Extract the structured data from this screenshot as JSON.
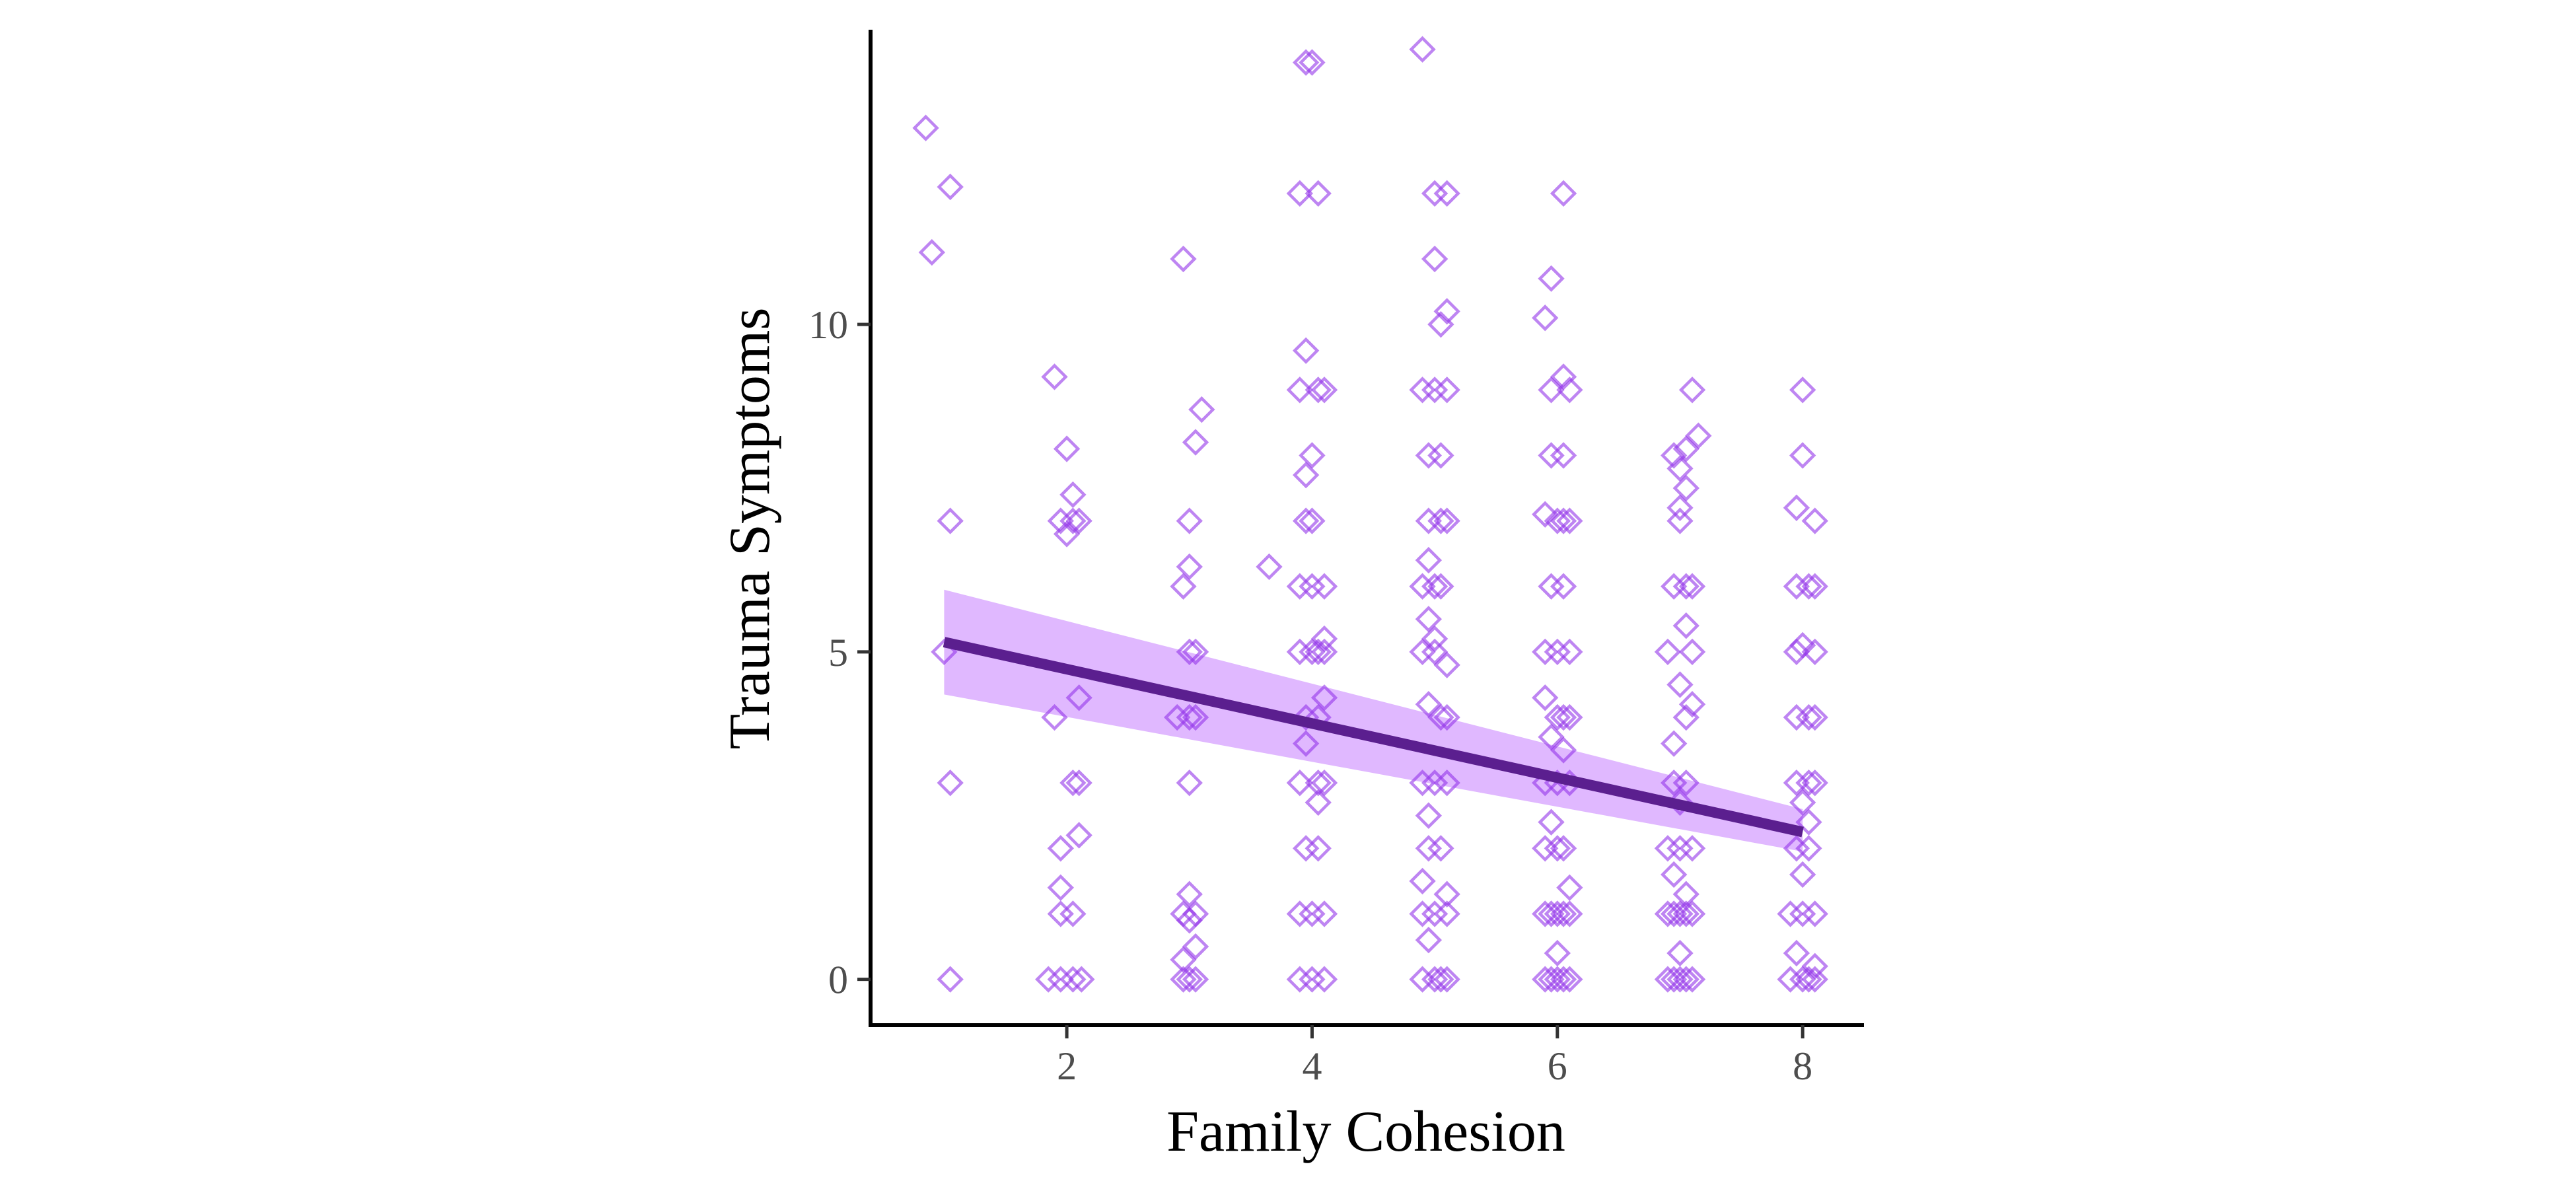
{
  "chart_data": {
    "type": "scatter",
    "xlabel": "Family Cohesion",
    "ylabel": "Trauma Symptoms",
    "xlim": [
      0.4,
      8.5
    ],
    "ylim": [
      -0.7,
      14.5
    ],
    "x_ticks": [
      2,
      4,
      6,
      8
    ],
    "y_ticks": [
      0,
      5,
      10
    ],
    "grid": false,
    "colors": {
      "points": "#9333ea",
      "fit_line": "#5b1f8f",
      "confidence_band": "#c77dff"
    },
    "fit": {
      "x": [
        1,
        8
      ],
      "y": [
        5.15,
        2.25
      ],
      "ci_lower": [
        4.35,
        1.95
      ],
      "ci_upper": [
        5.95,
        2.6
      ]
    },
    "points": [
      [
        0.85,
        13.0
      ],
      [
        1.05,
        12.1
      ],
      [
        0.9,
        11.1
      ],
      [
        1.05,
        7.0
      ],
      [
        1.0,
        5.0
      ],
      [
        1.05,
        3.0
      ],
      [
        1.05,
        0.0
      ],
      [
        1.9,
        9.2
      ],
      [
        2.0,
        8.1
      ],
      [
        2.05,
        7.4
      ],
      [
        1.95,
        7.0
      ],
      [
        2.05,
        7.0
      ],
      [
        2.1,
        7.0
      ],
      [
        2.0,
        6.8
      ],
      [
        2.1,
        4.3
      ],
      [
        1.9,
        4.0
      ],
      [
        2.05,
        3.0
      ],
      [
        2.1,
        3.0
      ],
      [
        2.1,
        2.2
      ],
      [
        1.95,
        2.0
      ],
      [
        1.95,
        1.4
      ],
      [
        1.95,
        1.0
      ],
      [
        2.05,
        1.0
      ],
      [
        1.85,
        0.0
      ],
      [
        1.95,
        0.0
      ],
      [
        2.05,
        0.0
      ],
      [
        2.12,
        0.0
      ],
      [
        2.95,
        11.0
      ],
      [
        3.1,
        8.7
      ],
      [
        3.05,
        8.2
      ],
      [
        3.0,
        7.0
      ],
      [
        3.0,
        6.3
      ],
      [
        2.95,
        6.0
      ],
      [
        3.0,
        5.0
      ],
      [
        3.05,
        5.0
      ],
      [
        2.9,
        4.0
      ],
      [
        3.05,
        4.0
      ],
      [
        3.0,
        4.0
      ],
      [
        3.0,
        3.0
      ],
      [
        3.0,
        1.3
      ],
      [
        2.95,
        1.0
      ],
      [
        3.05,
        1.0
      ],
      [
        3.0,
        0.9
      ],
      [
        3.05,
        0.5
      ],
      [
        2.95,
        0.3
      ],
      [
        3.0,
        0.0
      ],
      [
        2.95,
        0.0
      ],
      [
        3.05,
        0.0
      ],
      [
        3.65,
        6.3
      ],
      [
        3.95,
        14.0
      ],
      [
        4.0,
        14.0
      ],
      [
        3.9,
        12.0
      ],
      [
        4.05,
        12.0
      ],
      [
        3.95,
        9.6
      ],
      [
        3.9,
        9.0
      ],
      [
        4.05,
        9.0
      ],
      [
        4.1,
        9.0
      ],
      [
        4.0,
        8.0
      ],
      [
        3.95,
        7.7
      ],
      [
        3.95,
        7.0
      ],
      [
        4.0,
        7.0
      ],
      [
        3.9,
        6.0
      ],
      [
        4.1,
        6.0
      ],
      [
        4.0,
        6.0
      ],
      [
        4.1,
        5.2
      ],
      [
        3.9,
        5.0
      ],
      [
        4.0,
        5.0
      ],
      [
        4.05,
        5.0
      ],
      [
        4.1,
        5.0
      ],
      [
        4.1,
        4.3
      ],
      [
        3.95,
        4.0
      ],
      [
        4.05,
        4.0
      ],
      [
        3.95,
        3.6
      ],
      [
        3.9,
        3.0
      ],
      [
        4.05,
        3.0
      ],
      [
        4.1,
        3.0
      ],
      [
        4.05,
        2.7
      ],
      [
        3.95,
        2.0
      ],
      [
        4.05,
        2.0
      ],
      [
        3.9,
        1.0
      ],
      [
        4.0,
        1.0
      ],
      [
        4.1,
        1.0
      ],
      [
        3.9,
        0.0
      ],
      [
        4.0,
        0.0
      ],
      [
        4.1,
        0.0
      ],
      [
        4.9,
        14.2
      ],
      [
        5.0,
        12.0
      ],
      [
        5.1,
        12.0
      ],
      [
        5.0,
        11.0
      ],
      [
        5.1,
        10.2
      ],
      [
        5.05,
        10.0
      ],
      [
        4.9,
        9.0
      ],
      [
        5.0,
        9.0
      ],
      [
        5.1,
        9.0
      ],
      [
        4.95,
        8.0
      ],
      [
        5.05,
        8.0
      ],
      [
        4.95,
        7.0
      ],
      [
        5.1,
        7.0
      ],
      [
        5.05,
        7.0
      ],
      [
        4.95,
        6.4
      ],
      [
        4.9,
        6.0
      ],
      [
        5.0,
        6.0
      ],
      [
        5.05,
        6.0
      ],
      [
        4.95,
        5.5
      ],
      [
        5.0,
        5.2
      ],
      [
        4.9,
        5.0
      ],
      [
        5.0,
        5.0
      ],
      [
        5.1,
        4.8
      ],
      [
        4.95,
        4.2
      ],
      [
        5.05,
        4.0
      ],
      [
        5.1,
        4.0
      ],
      [
        4.9,
        3.0
      ],
      [
        5.0,
        3.0
      ],
      [
        5.1,
        3.0
      ],
      [
        4.95,
        2.5
      ],
      [
        4.95,
        2.0
      ],
      [
        5.05,
        2.0
      ],
      [
        4.9,
        1.5
      ],
      [
        5.1,
        1.3
      ],
      [
        4.9,
        1.0
      ],
      [
        5.0,
        1.0
      ],
      [
        5.1,
        1.0
      ],
      [
        4.95,
        0.6
      ],
      [
        4.9,
        0.0
      ],
      [
        5.0,
        0.0
      ],
      [
        5.05,
        0.0
      ],
      [
        5.1,
        0.0
      ],
      [
        6.05,
        12.0
      ],
      [
        5.95,
        10.7
      ],
      [
        5.9,
        10.1
      ],
      [
        6.05,
        9.2
      ],
      [
        5.95,
        9.0
      ],
      [
        6.1,
        9.0
      ],
      [
        5.95,
        8.0
      ],
      [
        6.05,
        8.0
      ],
      [
        5.9,
        7.1
      ],
      [
        6.0,
        7.0
      ],
      [
        6.05,
        7.0
      ],
      [
        6.1,
        7.0
      ],
      [
        5.95,
        6.0
      ],
      [
        6.05,
        6.0
      ],
      [
        5.9,
        5.0
      ],
      [
        6.0,
        5.0
      ],
      [
        6.1,
        5.0
      ],
      [
        5.9,
        4.3
      ],
      [
        6.0,
        4.0
      ],
      [
        6.05,
        4.0
      ],
      [
        6.1,
        4.0
      ],
      [
        5.95,
        3.7
      ],
      [
        6.05,
        3.5
      ],
      [
        5.9,
        3.0
      ],
      [
        6.0,
        3.0
      ],
      [
        6.1,
        3.0
      ],
      [
        5.95,
        2.4
      ],
      [
        5.9,
        2.0
      ],
      [
        6.0,
        2.0
      ],
      [
        6.05,
        2.0
      ],
      [
        6.1,
        1.4
      ],
      [
        5.9,
        1.0
      ],
      [
        5.95,
        1.0
      ],
      [
        6.0,
        1.0
      ],
      [
        6.05,
        1.0
      ],
      [
        6.1,
        1.0
      ],
      [
        6.0,
        0.4
      ],
      [
        5.9,
        0.0
      ],
      [
        5.95,
        0.0
      ],
      [
        6.0,
        0.0
      ],
      [
        6.05,
        0.0
      ],
      [
        6.1,
        0.0
      ],
      [
        7.1,
        9.0
      ],
      [
        7.15,
        8.3
      ],
      [
        7.05,
        8.1
      ],
      [
        6.95,
        8.0
      ],
      [
        7.0,
        7.8
      ],
      [
        7.05,
        7.5
      ],
      [
        7.0,
        7.2
      ],
      [
        7.0,
        7.0
      ],
      [
        6.95,
        6.0
      ],
      [
        7.05,
        6.0
      ],
      [
        7.1,
        6.0
      ],
      [
        7.05,
        5.4
      ],
      [
        6.9,
        5.0
      ],
      [
        7.1,
        5.0
      ],
      [
        7.0,
        4.5
      ],
      [
        7.1,
        4.2
      ],
      [
        7.05,
        4.0
      ],
      [
        6.95,
        3.6
      ],
      [
        6.95,
        3.0
      ],
      [
        7.05,
        3.0
      ],
      [
        7.0,
        2.7
      ],
      [
        6.9,
        2.0
      ],
      [
        7.0,
        2.0
      ],
      [
        7.1,
        2.0
      ],
      [
        6.95,
        1.6
      ],
      [
        7.05,
        1.3
      ],
      [
        6.9,
        1.0
      ],
      [
        6.95,
        1.0
      ],
      [
        7.0,
        1.0
      ],
      [
        7.05,
        1.0
      ],
      [
        7.1,
        1.0
      ],
      [
        7.0,
        0.4
      ],
      [
        6.9,
        0.0
      ],
      [
        6.95,
        0.0
      ],
      [
        7.0,
        0.0
      ],
      [
        7.05,
        0.0
      ],
      [
        7.1,
        0.0
      ],
      [
        8.0,
        9.0
      ],
      [
        8.0,
        8.0
      ],
      [
        7.95,
        7.2
      ],
      [
        8.1,
        7.0
      ],
      [
        7.95,
        6.0
      ],
      [
        8.05,
        6.0
      ],
      [
        8.1,
        6.0
      ],
      [
        8.0,
        5.1
      ],
      [
        7.95,
        5.0
      ],
      [
        8.1,
        5.0
      ],
      [
        7.95,
        4.0
      ],
      [
        8.05,
        4.0
      ],
      [
        8.1,
        4.0
      ],
      [
        7.95,
        3.0
      ],
      [
        8.05,
        3.0
      ],
      [
        8.1,
        3.0
      ],
      [
        8.0,
        2.7
      ],
      [
        8.05,
        2.4
      ],
      [
        7.95,
        2.0
      ],
      [
        8.05,
        2.0
      ],
      [
        8.0,
        1.6
      ],
      [
        7.9,
        1.0
      ],
      [
        8.0,
        1.0
      ],
      [
        8.1,
        1.0
      ],
      [
        7.95,
        0.4
      ],
      [
        8.1,
        0.2
      ],
      [
        7.9,
        0.0
      ],
      [
        8.0,
        0.0
      ],
      [
        8.05,
        0.0
      ],
      [
        8.1,
        0.0
      ]
    ]
  }
}
